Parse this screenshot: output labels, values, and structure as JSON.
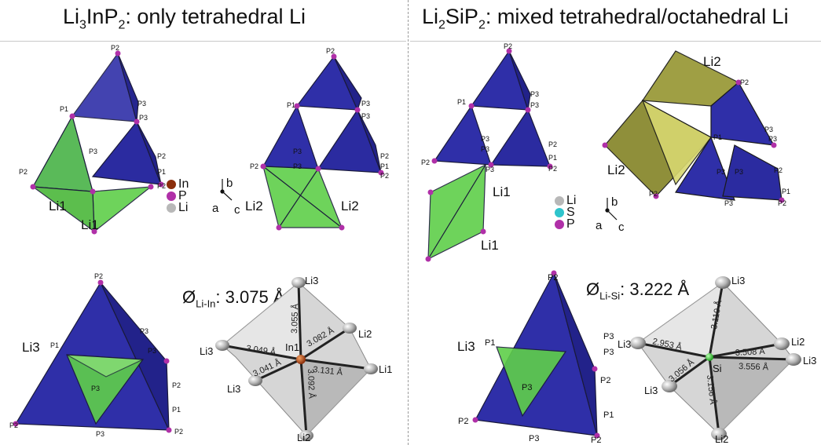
{
  "left": {
    "title": {
      "pre": "Li",
      "sub1": "3",
      "mid": "InP",
      "sub2": "2",
      "post": ": only tetrahedral Li"
    },
    "legend": [
      {
        "label": "In",
        "color": "#8b2e0b"
      },
      {
        "label": "P",
        "color": "#b030a8"
      },
      {
        "label": "Li",
        "color": "#b8b8b8"
      }
    ],
    "axes": {
      "a": "a",
      "b": "b",
      "c": "c"
    },
    "atom_labels": {
      "P1": "P1",
      "P2": "P2",
      "P3": "P3",
      "Li1": "Li1",
      "Li2": "Li2",
      "Li3": "Li3",
      "In1": "In1"
    },
    "bond_label": {
      "pre": "Ø",
      "sub": "Li-In",
      "post": ": 3.075 Å"
    },
    "distances": [
      "3.055 Å",
      "3.049 Å",
      "3.082 Å",
      "3.131 Å",
      "3.041 Å",
      "3.092 Å"
    ]
  },
  "right": {
    "title": {
      "pre": "Li",
      "sub1": "2",
      "mid": "SiP",
      "sub2": "2",
      "post": ": mixed tetrahedral/octahedral Li"
    },
    "legend": [
      {
        "label": "Li",
        "color": "#b8b8b8"
      },
      {
        "label": "S",
        "color": "#2ec4cc"
      },
      {
        "label": "P",
        "color": "#b030a8"
      }
    ],
    "axes": {
      "a": "a",
      "b": "b",
      "c": "c"
    },
    "atom_labels": {
      "P1": "P1",
      "P2": "P2",
      "P3": "P3",
      "Li1": "Li1",
      "Li2": "Li2",
      "Li3": "Li3",
      "Si": "Si"
    },
    "bond_label": {
      "pre": "Ø",
      "sub": "Li-Si",
      "post": ": 3.222 Å"
    },
    "distances": [
      "3.110 Å",
      "2.953 Å",
      "3.508 Å",
      "3.556 Å",
      "3.056 Å",
      "3.156 Å"
    ]
  },
  "colors": {
    "tetra_blue": "#2f2fa8",
    "tetra_green": "#5fcf4a",
    "octa_olive": "#8a8a30",
    "octa_yellow": "#d8d870",
    "phosphorus": "#b030a8",
    "lithium_grey": "#b8b8b8",
    "indium": "#c0581a",
    "silicon": "#3ecb3e"
  }
}
